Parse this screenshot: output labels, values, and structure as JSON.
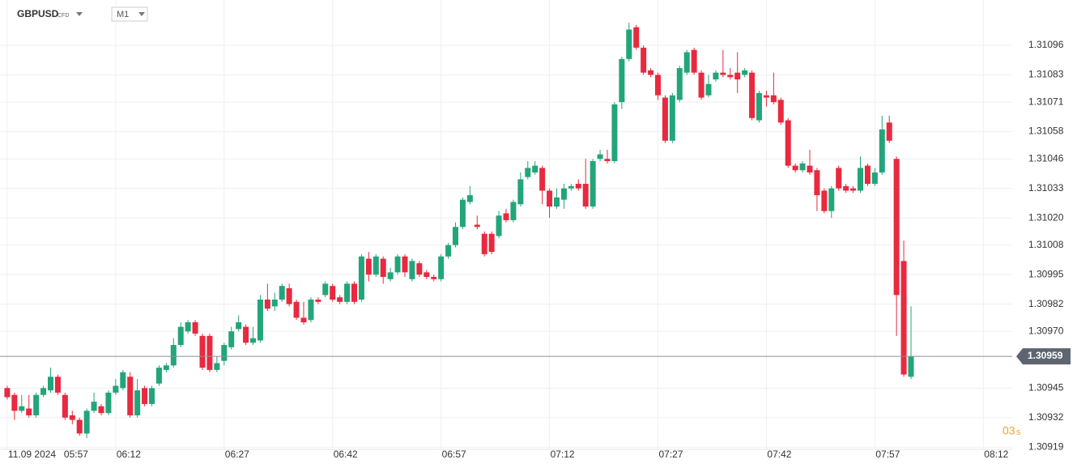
{
  "chart_data": {
    "type": "candlestick",
    "symbol": "GBPUSD",
    "symbol_type": "CFD",
    "timeframe": "M1",
    "date": "11.09 2024",
    "countdown": "03",
    "countdown_unit": "s",
    "current_price": 1.30959,
    "up_color": "#22a57a",
    "down_color": "#e8293f",
    "grid": true,
    "xlim": [
      "05:56",
      "08:16"
    ],
    "xticks": [
      "05:57",
      "06:12",
      "06:27",
      "06:42",
      "06:57",
      "07:12",
      "07:27",
      "07:42",
      "07:57",
      "08:12"
    ],
    "ylim": [
      1.30918,
      1.31116
    ],
    "yticks": [
      1.30919,
      1.30932,
      1.30945,
      {
        "value": 1.3097,
        "label": "1.30970"
      },
      1.30982,
      1.30995,
      1.31008,
      {
        "value": 1.3102,
        "label": "1.31020"
      },
      1.31033,
      1.31046,
      1.31058,
      1.31071,
      1.31083,
      1.31096
    ],
    "x": [
      "05:57",
      "05:58",
      "05:59",
      "06:00",
      "06:01",
      "06:02",
      "06:03",
      "06:04",
      "06:05",
      "06:06",
      "06:07",
      "06:08",
      "06:09",
      "06:10",
      "06:11",
      "06:12",
      "06:13",
      "06:14",
      "06:15",
      "06:16",
      "06:17",
      "06:18",
      "06:19",
      "06:20",
      "06:21",
      "06:22",
      "06:23",
      "06:24",
      "06:25",
      "06:26",
      "06:27",
      "06:28",
      "06:29",
      "06:30",
      "06:31",
      "06:32",
      "06:33",
      "06:34",
      "06:35",
      "06:36",
      "06:37",
      "06:38",
      "06:39",
      "06:40",
      "06:41",
      "06:42",
      "06:43",
      "06:44",
      "06:45",
      "06:46",
      "06:47",
      "06:48",
      "06:49",
      "06:50",
      "06:51",
      "06:52",
      "06:53",
      "06:54",
      "06:55",
      "06:56",
      "06:57",
      "06:58",
      "06:59",
      "07:00",
      "07:01",
      "07:02",
      "07:03",
      "07:04",
      "07:05",
      "07:06",
      "07:07",
      "07:08",
      "07:09",
      "07:10",
      "07:11",
      "07:12",
      "07:13",
      "07:14",
      "07:15",
      "07:16",
      "07:17",
      "07:18",
      "07:19",
      "07:20",
      "07:21",
      "07:22",
      "07:23",
      "07:24",
      "07:25",
      "07:26",
      "07:27",
      "07:28",
      "07:29",
      "07:30",
      "07:31",
      "07:32",
      "07:33",
      "07:34",
      "07:35",
      "07:36",
      "07:37",
      "07:38",
      "07:39",
      "07:40",
      "07:41",
      "07:42",
      "07:43",
      "07:44",
      "07:45",
      "07:46",
      "07:47",
      "07:48",
      "07:49",
      "07:50",
      "07:51",
      "07:52",
      "07:53",
      "07:54",
      "07:55",
      "07:56",
      "07:57",
      "07:58",
      "07:59",
      "08:00",
      "08:01",
      "08:02"
    ],
    "open": [
      1.30945,
      1.30942,
      1.30935,
      1.30936,
      1.30933,
      1.30942,
      1.30944,
      1.3095,
      1.30942,
      1.30933,
      1.30931,
      1.30925,
      1.30935,
      1.30937,
      1.30934,
      1.30943,
      1.30945,
      1.3095,
      1.30933,
      1.30945,
      1.30938,
      1.30947,
      1.30953,
      1.30955,
      1.30964,
      1.3097,
      1.30974,
      1.30968,
      1.30968,
      1.30953,
      1.30957,
      1.30963,
      1.30971,
      1.30972,
      1.30965,
      1.30966,
      1.30984,
      1.30981,
      1.30984,
      1.30989,
      1.30983,
      1.30976,
      1.30975,
      1.30984,
      1.30986,
      1.3099,
      1.30985,
      1.30983,
      1.30991,
      1.30984,
      1.31002,
      1.30995,
      1.31002,
      1.30993,
      1.30996,
      1.31003,
      1.30993,
      1.31,
      1.30996,
      1.30994,
      1.30993,
      1.31003,
      1.31008,
      1.31016,
      1.31027,
      1.31017,
      1.31013,
      1.31013,
      1.31012,
      1.31022,
      1.31019,
      1.31026,
      1.31038,
      1.3104,
      1.31042,
      1.31032,
      1.31025,
      1.31028,
      1.31033,
      1.31035,
      1.31035,
      1.31025,
      1.31046,
      1.31046,
      1.31045,
      1.31071,
      1.3109,
      1.31104,
      1.31095,
      1.31085,
      1.31083,
      1.31073,
      1.31054,
      1.31072,
      1.31084,
      1.31094,
      1.31084,
      1.31074,
      1.31081,
      1.31084,
      1.31083,
      1.31084,
      1.31083,
      1.31084,
      1.31063,
      1.31074,
      1.31074,
      1.31072,
      1.31063,
      1.31043,
      1.31041,
      1.31043,
      1.31041,
      1.31032,
      1.31023,
      1.31042,
      1.31034,
      1.31033,
      1.31032,
      1.31043,
      1.31035,
      1.3104,
      1.31062,
      1.31046,
      1.31001,
      1.3095
    ],
    "high": [
      1.30946,
      1.30943,
      1.30942,
      1.30942,
      1.30943,
      1.30946,
      1.30954,
      1.30951,
      1.30943,
      1.30935,
      1.30932,
      1.30936,
      1.30943,
      1.30938,
      1.30944,
      1.30949,
      1.30953,
      1.30952,
      1.30949,
      1.30946,
      1.30946,
      1.30955,
      1.30956,
      1.30967,
      1.30974,
      1.30975,
      1.30975,
      1.30969,
      1.30969,
      1.30959,
      1.30965,
      1.30972,
      1.30977,
      1.30973,
      1.30972,
      1.30986,
      1.30991,
      1.30987,
      1.30991,
      1.30991,
      1.30984,
      1.30983,
      1.30985,
      1.30985,
      1.30992,
      1.30991,
      1.30986,
      1.30992,
      1.30992,
      1.31004,
      1.31005,
      1.31004,
      1.31003,
      1.30998,
      1.31004,
      1.31004,
      1.31002,
      1.31001,
      1.30997,
      1.30995,
      1.31004,
      1.31009,
      1.31018,
      1.31029,
      1.31034,
      1.31021,
      1.31014,
      1.31014,
      1.31023,
      1.31024,
      1.31028,
      1.3104,
      1.31045,
      1.31045,
      1.31043,
      1.31033,
      1.31033,
      1.31035,
      1.31035,
      1.31037,
      1.31046,
      1.31046,
      1.3105,
      1.3105,
      1.31071,
      1.31091,
      1.31106,
      1.31105,
      1.31096,
      1.31086,
      1.31084,
      1.31074,
      1.31075,
      1.31087,
      1.31094,
      1.31095,
      1.31085,
      1.31083,
      1.31085,
      1.31094,
      1.31086,
      1.31093,
      1.31086,
      1.31085,
      1.31076,
      1.31076,
      1.31084,
      1.31073,
      1.31064,
      1.31044,
      1.31045,
      1.3105,
      1.31042,
      1.31033,
      1.31034,
      1.31043,
      1.31035,
      1.31034,
      1.31047,
      1.31044,
      1.31042,
      1.31065,
      1.31065,
      1.31047,
      1.3101,
      1.30981
    ],
    "low": [
      1.3094,
      1.30931,
      1.30934,
      1.30932,
      1.30932,
      1.30941,
      1.30943,
      1.30942,
      1.30931,
      1.30929,
      1.30924,
      1.30923,
      1.30934,
      1.30933,
      1.30933,
      1.30942,
      1.30944,
      1.30932,
      1.30932,
      1.30937,
      1.30937,
      1.30946,
      1.30952,
      1.30954,
      1.30963,
      1.30969,
      1.30968,
      1.30953,
      1.30952,
      1.30952,
      1.30955,
      1.30962,
      1.3097,
      1.30964,
      1.30964,
      1.30965,
      1.30979,
      1.30979,
      1.30983,
      1.30981,
      1.30975,
      1.30973,
      1.30974,
      1.30982,
      1.30985,
      1.30983,
      1.30982,
      1.30982,
      1.30982,
      1.30983,
      1.30992,
      1.30994,
      1.30991,
      1.30992,
      1.30995,
      1.30994,
      1.30992,
      1.30994,
      1.30993,
      1.30992,
      1.30992,
      1.31002,
      1.31007,
      1.31015,
      1.31026,
      1.31015,
      1.31003,
      1.31004,
      1.31011,
      1.31018,
      1.31018,
      1.31025,
      1.31037,
      1.31039,
      1.31026,
      1.3102,
      1.31024,
      1.31024,
      1.31032,
      1.31032,
      1.31024,
      1.31024,
      1.31045,
      1.31044,
      1.31044,
      1.31068,
      1.31089,
      1.31094,
      1.31083,
      1.31082,
      1.31072,
      1.31053,
      1.31053,
      1.31071,
      1.31083,
      1.31083,
      1.31072,
      1.31073,
      1.3108,
      1.31082,
      1.31081,
      1.31075,
      1.31082,
      1.31063,
      1.31062,
      1.31069,
      1.3107,
      1.31061,
      1.31042,
      1.3104,
      1.3104,
      1.31039,
      1.31023,
      1.31022,
      1.3102,
      1.31032,
      1.31031,
      1.31031,
      1.31031,
      1.31034,
      1.31034,
      1.31039,
      1.31053,
      1.30968,
      1.3095,
      1.30949
    ],
    "close": [
      1.30941,
      1.30935,
      1.30937,
      1.30933,
      1.30942,
      1.30945,
      1.3095,
      1.30943,
      1.30932,
      1.30931,
      1.30925,
      1.30935,
      1.30939,
      1.30934,
      1.30943,
      1.30946,
      1.30952,
      1.30933,
      1.30944,
      1.30938,
      1.30945,
      1.30954,
      1.30955,
      1.30964,
      1.30972,
      1.30974,
      1.30969,
      1.30954,
      1.30953,
      1.30956,
      1.30964,
      1.3097,
      1.30974,
      1.30965,
      1.30967,
      1.30984,
      1.3098,
      1.30984,
      1.3099,
      1.30982,
      1.30976,
      1.30974,
      1.30984,
      1.30983,
      1.30991,
      1.30984,
      1.30983,
      1.30991,
      1.30983,
      1.31003,
      1.30995,
      1.31003,
      1.30994,
      1.30996,
      1.31003,
      1.30996,
      1.31001,
      1.30995,
      1.30994,
      1.30993,
      1.31003,
      1.31008,
      1.31016,
      1.31028,
      1.3103,
      1.31016,
      1.31004,
      1.31005,
      1.31021,
      1.31019,
      1.31027,
      1.31037,
      1.31042,
      1.31043,
      1.31032,
      1.31025,
      1.31029,
      1.31033,
      1.31034,
      1.31033,
      1.31025,
      1.31045,
      1.31048,
      1.31045,
      1.3107,
      1.3109,
      1.31103,
      1.31095,
      1.31084,
      1.31083,
      1.31074,
      1.31054,
      1.31074,
      1.31086,
      1.31093,
      1.31084,
      1.31073,
      1.31079,
      1.31084,
      1.31083,
      1.31082,
      1.31081,
      1.31085,
      1.31064,
      1.31075,
      1.31073,
      1.31071,
      1.31062,
      1.31043,
      1.31041,
      1.31044,
      1.3104,
      1.3103,
      1.31023,
      1.31033,
      1.31033,
      1.31032,
      1.31032,
      1.31042,
      1.31035,
      1.3104,
      1.31059,
      1.31054,
      1.30986,
      1.30951,
      1.30959
    ]
  }
}
